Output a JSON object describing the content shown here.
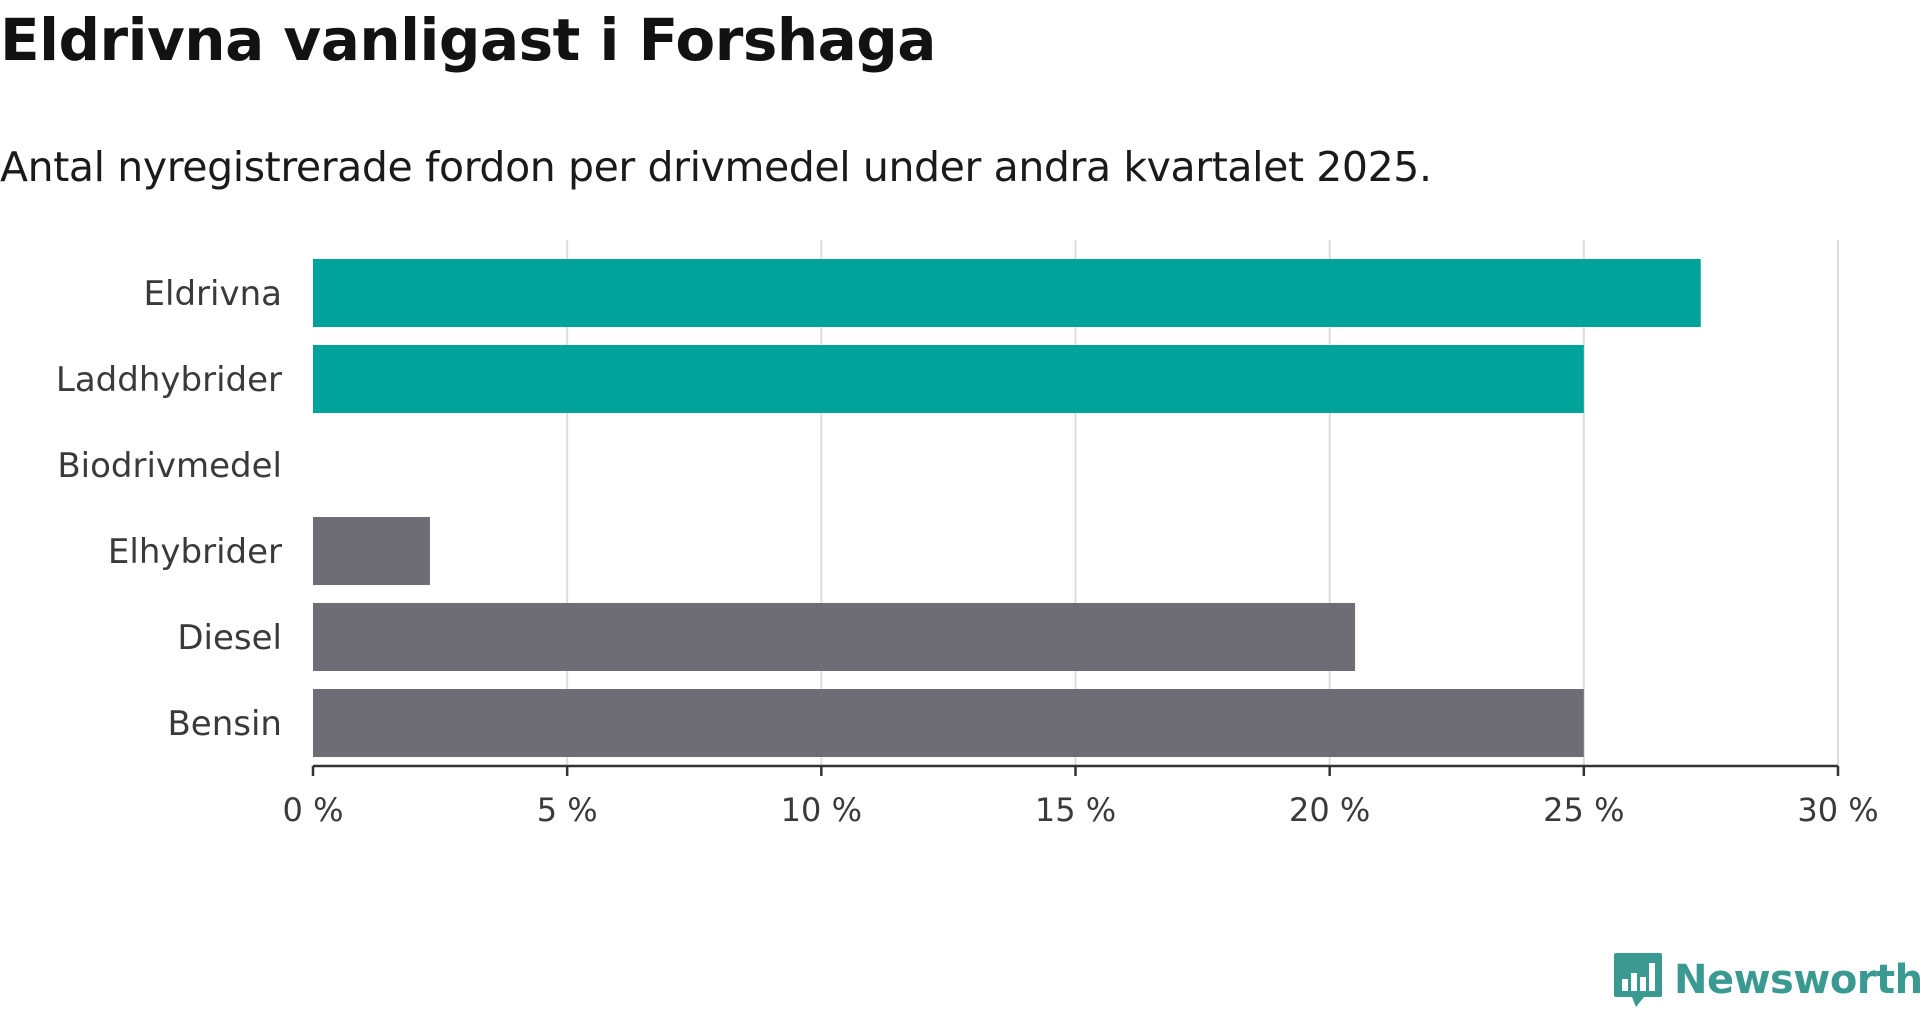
{
  "title": "Eldrivna vanligast i Forshaga",
  "subtitle": "Antal nyregistrerade fordon per drivmedel under andra kvartalet 2025.",
  "brand": {
    "name": "Newsworthy",
    "color": "#3a9a92",
    "icon": "newsworthy-logo-icon"
  },
  "chart_data": {
    "type": "bar",
    "orientation": "horizontal",
    "title": "Eldrivna vanligast i Forshaga",
    "subtitle": "Antal nyregistrerade fordon per drivmedel under andra kvartalet 2025.",
    "xlabel": "",
    "ylabel": "",
    "categories": [
      "Eldrivna",
      "Laddhybrider",
      "Biodrivmedel",
      "Elhybrider",
      "Diesel",
      "Bensin"
    ],
    "values": [
      27.3,
      25.0,
      0.0,
      2.3,
      20.5,
      25.0
    ],
    "value_unit": "%",
    "colors": [
      "#00a39a",
      "#00a39a",
      "#00a39a",
      "#6e6d75",
      "#6e6d75",
      "#6e6d75"
    ],
    "xlim": [
      0,
      30
    ],
    "xticks": [
      0,
      5,
      10,
      15,
      20,
      25,
      30
    ],
    "xtick_labels": [
      "0 %",
      "5 %",
      "10 %",
      "15 %",
      "20 %",
      "25 %",
      "30 %"
    ],
    "grid": true,
    "gridline_color": "#dcdcdc",
    "axis_color": "#333333",
    "legend": "none"
  }
}
